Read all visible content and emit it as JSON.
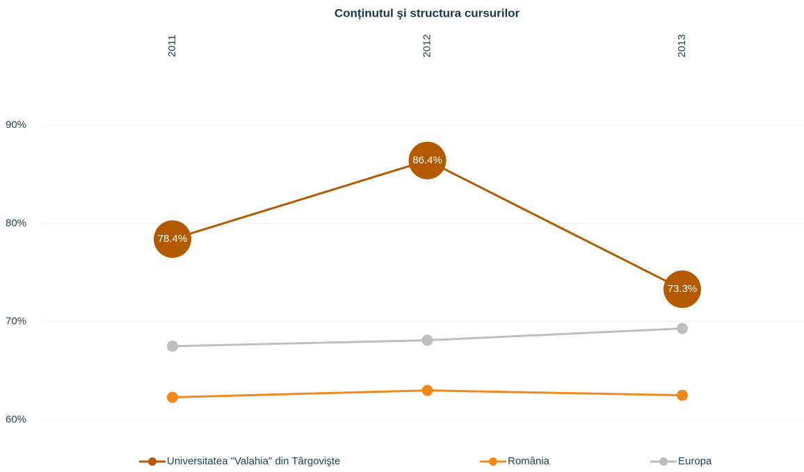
{
  "chart_data": {
    "type": "line",
    "title": "Conținutul şi structura cursurilor",
    "categories": [
      "2011",
      "2012",
      "2013"
    ],
    "series": [
      {
        "name": "Universitatea \"Valahia\" din Târgovişte",
        "color": "#b35a00",
        "values": [
          78.4,
          86.4,
          73.3
        ],
        "value_labels": [
          "78.4%",
          "86.4%",
          "73.3%"
        ]
      },
      {
        "name": "România",
        "color": "#f0891c",
        "values": [
          62.3,
          63.0,
          62.5
        ]
      },
      {
        "name": "Europa",
        "color": "#bfbfbf",
        "values": [
          67.5,
          68.1,
          69.3
        ]
      }
    ],
    "ylim": [
      60,
      90
    ],
    "yticks": [
      {
        "value": 60,
        "label": "60%"
      },
      {
        "value": 70,
        "label": "70%"
      },
      {
        "value": 80,
        "label": "80%"
      },
      {
        "value": 90,
        "label": "90%"
      }
    ],
    "grid": true,
    "legend": "bottom"
  }
}
